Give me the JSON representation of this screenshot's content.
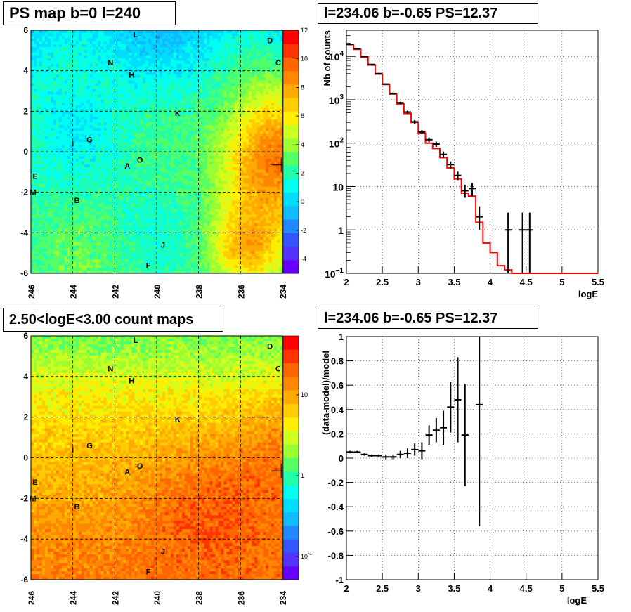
{
  "chart_data": [
    {
      "type": "heatmap",
      "title": "PS map b=0 l=240",
      "x_ticks": [
        "246",
        "244",
        "242",
        "240",
        "238",
        "236",
        "234"
      ],
      "y_ticks": [
        "6",
        "4",
        "2",
        "0",
        "-2",
        "-4",
        "-6"
      ],
      "xlim": [
        246,
        234
      ],
      "ylim": [
        -6,
        6
      ],
      "colorbar_ticks": [
        "12",
        "10",
        "8",
        "6",
        "4",
        "2",
        "0",
        "-2",
        "-4"
      ],
      "colorbar_range": [
        -5,
        12
      ],
      "grid": true,
      "marker": {
        "l": 234.06,
        "b": -0.65
      },
      "source_labels": [
        {
          "label": "L",
          "l": 241.0,
          "b": 5.8
        },
        {
          "label": "D",
          "l": 234.6,
          "b": 5.5
        },
        {
          "label": "N",
          "l": 242.2,
          "b": 4.4
        },
        {
          "label": "C",
          "l": 234.2,
          "b": 4.4
        },
        {
          "label": "H",
          "l": 241.2,
          "b": 3.8
        },
        {
          "label": "K",
          "l": 239.0,
          "b": 1.9
        },
        {
          "label": "G",
          "l": 243.2,
          "b": 0.6
        },
        {
          "label": "I",
          "l": 244.0,
          "b": 0.4
        },
        {
          "label": "O",
          "l": 240.8,
          "b": -0.4
        },
        {
          "label": "A",
          "l": 241.4,
          "b": -0.7
        },
        {
          "label": "E",
          "l": 245.8,
          "b": -1.2
        },
        {
          "label": "M",
          "l": 245.9,
          "b": -2.0
        },
        {
          "label": "B",
          "l": 243.8,
          "b": -2.4
        },
        {
          "label": "J",
          "l": 239.7,
          "b": -4.6
        },
        {
          "label": "F",
          "l": 240.4,
          "b": -5.6
        }
      ]
    },
    {
      "type": "line",
      "title": "l=234.06 b=-0.65 PS=12.37",
      "xlabel": "logE",
      "ylabel": "Nb of counts",
      "xlim": [
        2,
        5.5
      ],
      "ylim": [
        0.1,
        40000
      ],
      "yscale": "log",
      "x_ticks": [
        "2",
        "2.5",
        "3",
        "3.5",
        "4",
        "4.5",
        "5",
        "5.5"
      ],
      "y_ticks": [
        {
          "label": "10",
          "sup": "4",
          "value": 10000
        },
        {
          "label": "10",
          "sup": "3",
          "value": 1000
        },
        {
          "label": "10",
          "sup": "2",
          "value": 100
        },
        {
          "label": "10",
          "sup": "",
          "value": 10
        },
        {
          "label": "1",
          "sup": "",
          "value": 1
        },
        {
          "label": "10",
          "sup": "−1",
          "value": 0.1
        }
      ],
      "grid": true,
      "series": [
        {
          "role": "data",
          "color": "#000000",
          "x": [
            2.05,
            2.15,
            2.25,
            2.35,
            2.45,
            2.55,
            2.65,
            2.75,
            2.85,
            2.95,
            3.05,
            3.15,
            3.25,
            3.35,
            3.45,
            3.55,
            3.65,
            3.75,
            3.85,
            4.25,
            4.45,
            4.55
          ],
          "y": [
            19000,
            15000,
            10000,
            6500,
            4000,
            2300,
            1400,
            850,
            520,
            310,
            180,
            120,
            95,
            55,
            32,
            18,
            8,
            9,
            2,
            1,
            1,
            1
          ],
          "ylo": [
            18500,
            14600,
            9700,
            6300,
            3850,
            2200,
            1330,
            800,
            480,
            280,
            160,
            105,
            82,
            46,
            26,
            14,
            5.5,
            6,
            1,
            0.1,
            0.1,
            0.1
          ],
          "yhi": [
            19500,
            15400,
            10300,
            6700,
            4150,
            2400,
            1470,
            900,
            560,
            340,
            200,
            135,
            108,
            64,
            38,
            22,
            11,
            12,
            3.5,
            2.5,
            2.5,
            2.5
          ]
        },
        {
          "role": "model",
          "color": "#ff0000",
          "edges": [
            2.0,
            2.1,
            2.2,
            2.3,
            2.4,
            2.5,
            2.6,
            2.7,
            2.8,
            2.9,
            3.0,
            3.1,
            3.2,
            3.3,
            3.4,
            3.5,
            3.6,
            3.7,
            3.8,
            3.9,
            4.0,
            4.1,
            4.2,
            4.3,
            5.5
          ],
          "values": [
            18500,
            14500,
            9700,
            6300,
            3900,
            2250,
            1350,
            800,
            480,
            300,
            170,
            100,
            75,
            46,
            27,
            15,
            7,
            6,
            1.5,
            0.5,
            0.3,
            0.15,
            0.12,
            0.1
          ]
        }
      ]
    },
    {
      "type": "heatmap",
      "title": "2.50<logE<3.00 count maps",
      "x_ticks": [
        "246",
        "244",
        "242",
        "240",
        "238",
        "236",
        "234"
      ],
      "y_ticks": [
        "6",
        "4",
        "2",
        "0",
        "-2",
        "-4",
        "-6"
      ],
      "xlim": [
        246,
        234
      ],
      "ylim": [
        -6,
        6
      ],
      "colorbar_scale": "log",
      "colorbar_ticks": [
        {
          "label": "10",
          "sup": ""
        },
        {
          "label": "1",
          "sup": ""
        },
        {
          "label": "10",
          "sup": "-1"
        }
      ],
      "grid": true,
      "marker": {
        "l": 234.06,
        "b": -0.65
      },
      "source_labels": [
        {
          "label": "L",
          "l": 241.0,
          "b": 5.8
        },
        {
          "label": "D",
          "l": 234.6,
          "b": 5.5
        },
        {
          "label": "N",
          "l": 242.2,
          "b": 4.4
        },
        {
          "label": "C",
          "l": 234.2,
          "b": 4.4
        },
        {
          "label": "H",
          "l": 241.2,
          "b": 3.8
        },
        {
          "label": "K",
          "l": 239.0,
          "b": 1.9
        },
        {
          "label": "G",
          "l": 243.2,
          "b": 0.6
        },
        {
          "label": "I",
          "l": 244.0,
          "b": 0.4
        },
        {
          "label": "O",
          "l": 240.8,
          "b": -0.4
        },
        {
          "label": "A",
          "l": 241.4,
          "b": -0.7
        },
        {
          "label": "E",
          "l": 245.8,
          "b": -1.2
        },
        {
          "label": "M",
          "l": 245.9,
          "b": -2.0
        },
        {
          "label": "B",
          "l": 243.8,
          "b": -2.4
        },
        {
          "label": "J",
          "l": 239.7,
          "b": -4.6
        },
        {
          "label": "F",
          "l": 240.4,
          "b": -5.6
        }
      ]
    },
    {
      "type": "scatter",
      "title": "l=234.06 b=-0.65 PS=12.37",
      "xlabel": "logE",
      "ylabel": "(data-model)/model",
      "xlim": [
        2,
        5.5
      ],
      "ylim": [
        -1,
        1
      ],
      "x_ticks": [
        "2",
        "2.5",
        "3",
        "3.5",
        "4",
        "4.5",
        "5",
        "5.5"
      ],
      "y_ticks": [
        "1",
        "0.8",
        "0.6",
        "0.4",
        "0.2",
        "0",
        "-0.2",
        "-0.4",
        "-0.6",
        "-0.8",
        "-1"
      ],
      "grid": true,
      "series": [
        {
          "role": "residual",
          "color": "#000000",
          "x": [
            2.05,
            2.15,
            2.25,
            2.35,
            2.45,
            2.55,
            2.65,
            2.75,
            2.85,
            2.95,
            3.05,
            3.15,
            3.25,
            3.35,
            3.45,
            3.55,
            3.65,
            3.85
          ],
          "y": [
            0.05,
            0.05,
            0.03,
            0.02,
            0.02,
            0.01,
            0.01,
            0.03,
            0.04,
            0.07,
            0.06,
            0.19,
            0.23,
            0.25,
            0.42,
            0.48,
            0.19,
            0.44
          ],
          "err": [
            0.01,
            0.01,
            0.01,
            0.01,
            0.01,
            0.02,
            0.02,
            0.03,
            0.04,
            0.05,
            0.07,
            0.08,
            0.1,
            0.14,
            0.21,
            0.35,
            0.42,
            1.0
          ]
        }
      ]
    }
  ]
}
